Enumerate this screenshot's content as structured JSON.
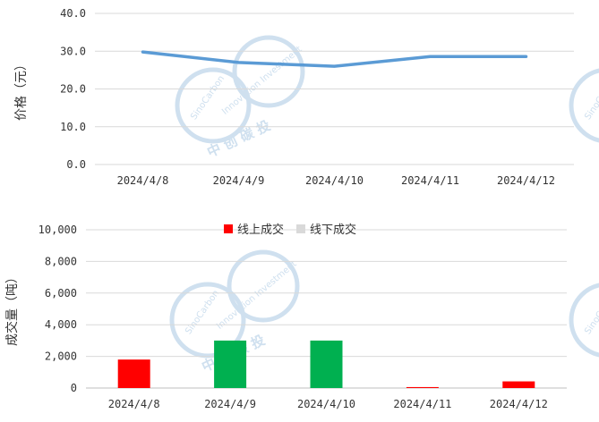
{
  "chart_data": [
    {
      "type": "line",
      "categories": [
        "2024/4/8",
        "2024/4/9",
        "2024/4/10",
        "2024/4/11",
        "2024/4/12"
      ],
      "series": [
        {
          "values": [
            29.8,
            27.0,
            26.0,
            28.6,
            28.6
          ],
          "color": "#5b9bd5"
        }
      ],
      "ylabel": "价格（元）",
      "ylim": [
        0,
        40
      ],
      "yticks": [
        "0.0",
        "10.0",
        "20.0",
        "30.0",
        "40.0"
      ],
      "grid": true
    },
    {
      "type": "bar",
      "categories": [
        "2024/4/8",
        "2024/4/9",
        "2024/4/10",
        "2024/4/11",
        "2024/4/12"
      ],
      "series": [
        {
          "name": "线上成交",
          "values": [
            1800,
            0,
            0,
            60,
            420
          ],
          "color": "#ff0000"
        },
        {
          "name": "线下成交",
          "values": [
            0,
            3000,
            3000,
            0,
            0
          ],
          "color": "#00b050",
          "legend_color": "#d9d9d9"
        }
      ],
      "ylabel": "成交量（吨）",
      "ylim": [
        0,
        10000
      ],
      "yticks": [
        "0",
        "2,000",
        "4,000",
        "6,000",
        "8,000",
        "10,000"
      ],
      "legend": "top-center",
      "grid": true
    }
  ],
  "watermark": {
    "brand_cn": "中 创 碳 投",
    "brand_en_top": "Innovation Investment",
    "brand_en_left": "SinoCarbon",
    "color": "#cfe0ef"
  }
}
